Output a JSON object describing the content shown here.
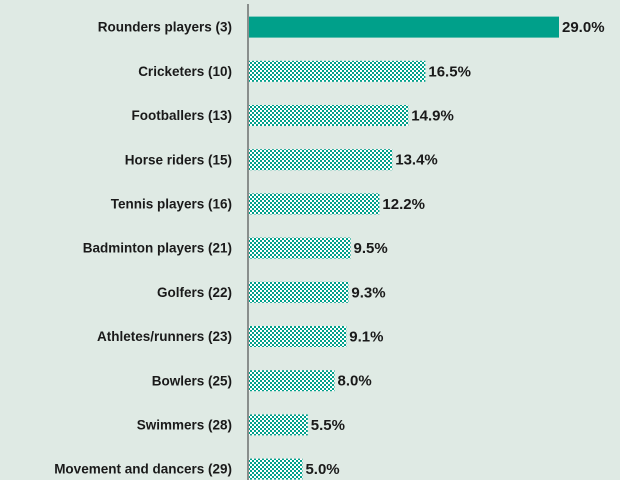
{
  "chart_data": {
    "type": "barh",
    "categories": [
      "Rounders players (3)",
      "Cricketers (10)",
      "Footballers (13)",
      "Horse riders (15)",
      "Tennis players (16)",
      "Badminton players (21)",
      "Golfers (22)",
      "Athletes/runners (23)",
      "Bowlers (25)",
      "Swimmers (28)",
      "Movement and dancers (29)"
    ],
    "values": [
      29.0,
      16.5,
      14.9,
      13.4,
      12.2,
      9.5,
      9.3,
      9.1,
      8.0,
      5.5,
      5.0
    ],
    "value_labels": [
      "29.0%",
      "16.5%",
      "14.9%",
      "13.4%",
      "12.2%",
      "9.5%",
      "9.3%",
      "9.1%",
      "8.0%",
      "5.5%",
      "5.0%"
    ],
    "color": "#00a08a",
    "highlight_index": 0,
    "xlim": [
      0,
      29
    ]
  }
}
